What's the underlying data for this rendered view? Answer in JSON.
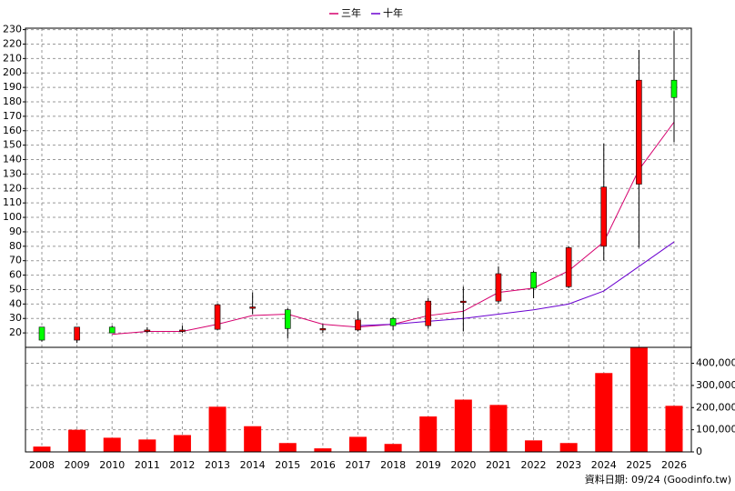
{
  "chart_data": [
    {
      "type": "candlestick",
      "categories": [
        "2008",
        "2009",
        "2010",
        "2011",
        "2012",
        "2013",
        "2014",
        "2015",
        "2016",
        "2017",
        "2018",
        "2019",
        "2020",
        "2021",
        "2022",
        "2023",
        "2024",
        "2025",
        "2026"
      ],
      "open": [
        24,
        15,
        24,
        21,
        21,
        22.5,
        37,
        36,
        22,
        22,
        30,
        25,
        41,
        42,
        62,
        52,
        80,
        123,
        195
      ],
      "high": [
        24,
        24,
        25,
        24,
        25,
        40,
        48,
        37,
        26,
        35,
        31,
        44,
        52,
        66,
        63,
        80,
        151,
        216,
        229
      ],
      "low": [
        14,
        13,
        20,
        20,
        20,
        22,
        33,
        16,
        20,
        21,
        22,
        23,
        21,
        40,
        44,
        51,
        70,
        79,
        152
      ],
      "close": [
        15,
        24,
        20,
        22,
        22,
        39.5,
        38,
        23,
        23,
        29,
        25,
        42,
        42,
        61,
        51,
        79,
        121,
        195,
        183
      ],
      "up_color": "#ff0000",
      "down_color": "#00ff00",
      "series": [
        {
          "name": "三年",
          "color": "#d6006e",
          "values": [
            null,
            null,
            19,
            21,
            21,
            26,
            32,
            33,
            26,
            24,
            26,
            32,
            35,
            48,
            51,
            63,
            83,
            133,
            166
          ]
        },
        {
          "name": "十年",
          "color": "#6a00d0",
          "values": [
            null,
            null,
            null,
            null,
            null,
            null,
            null,
            null,
            null,
            25,
            26,
            28,
            30,
            33,
            36,
            40,
            49,
            66,
            83
          ]
        }
      ],
      "ylim": [
        10,
        231
      ],
      "yticks": [
        20,
        30,
        40,
        50,
        60,
        70,
        80,
        90,
        100,
        110,
        120,
        130,
        140,
        150,
        160,
        170,
        180,
        190,
        200,
        210,
        220,
        230
      ],
      "grid": true,
      "legend": "top"
    },
    {
      "type": "bar",
      "values": [
        24000,
        100000,
        64000,
        56000,
        76000,
        204000,
        116000,
        40000,
        16000,
        68000,
        36000,
        160000,
        236000,
        212000,
        52000,
        40000,
        356000,
        470000,
        208000
      ],
      "color": "#ff0000",
      "ylim": [
        0,
        472000
      ],
      "yticks": [
        0,
        {
          "value": 100000,
          "label": "100,000"
        },
        {
          "value": 200000,
          "label": "200,000"
        },
        {
          "value": 300000,
          "label": "300,000"
        },
        {
          "value": 400000,
          "label": "400,000"
        }
      ],
      "grid": true,
      "footer": "資料日期: 09/24 (Goodinfo.tw)"
    }
  ]
}
